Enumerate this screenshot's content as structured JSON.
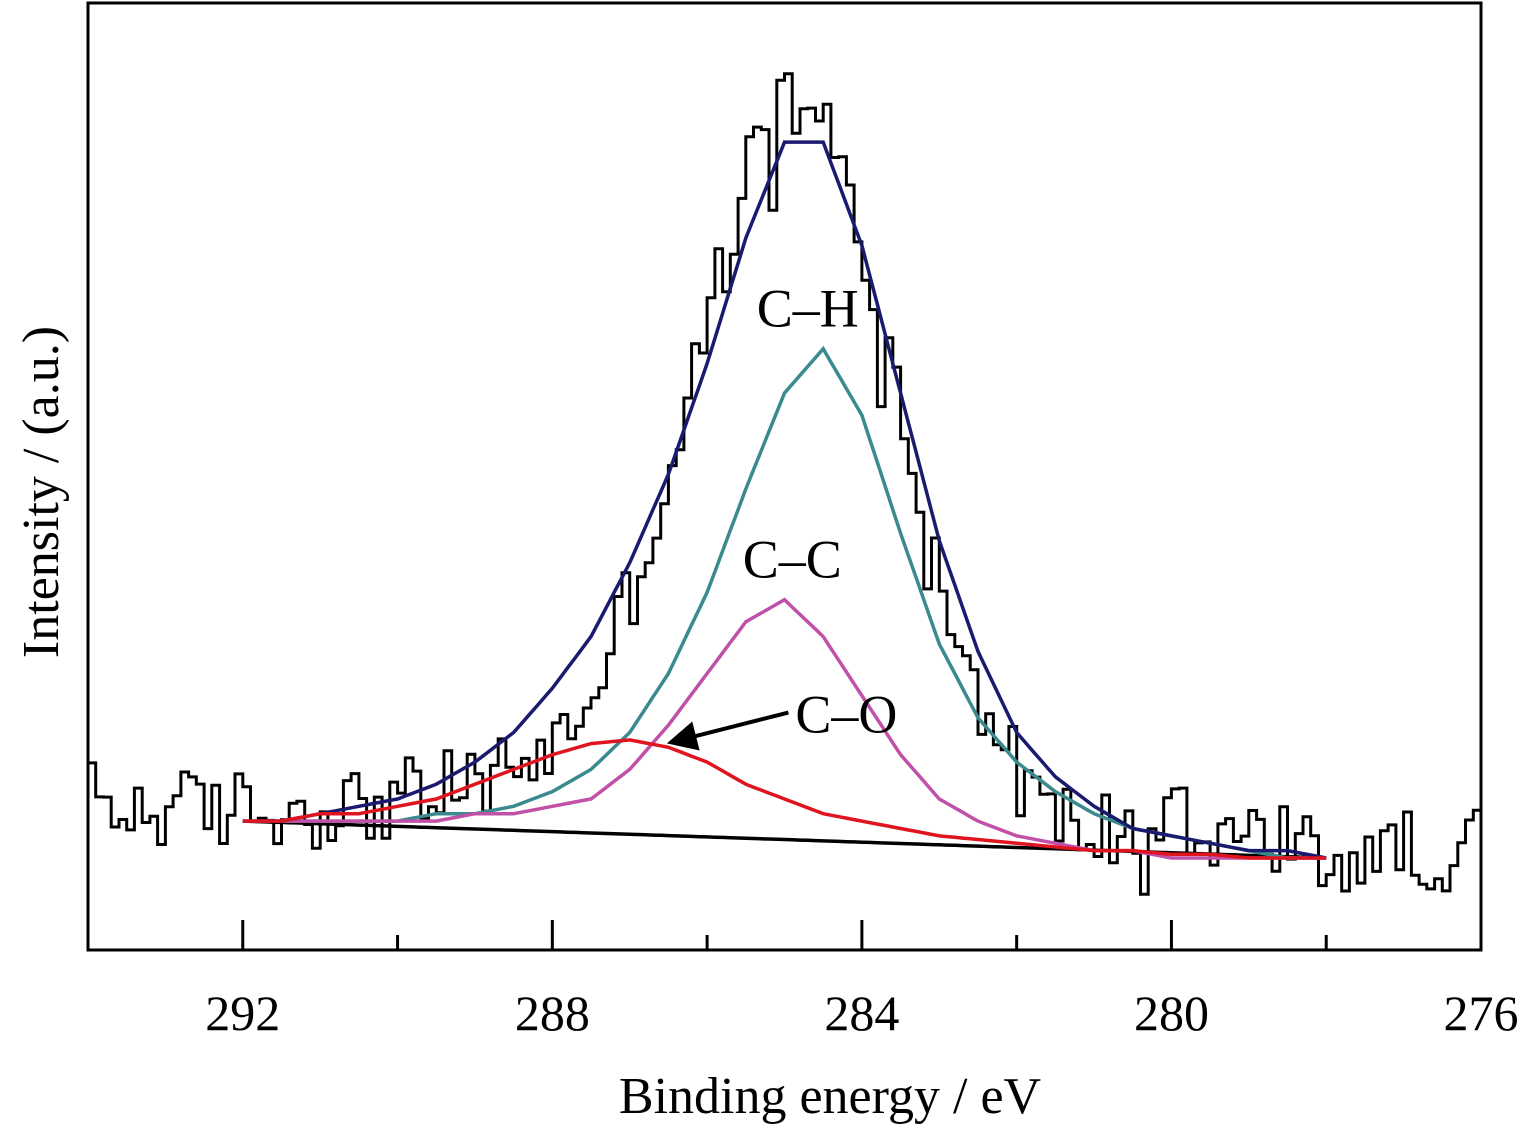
{
  "chart_data": {
    "type": "line",
    "xlabel": "Binding energy / eV",
    "ylabel": "Intensity / (a.u.)",
    "xlim": [
      294,
      276
    ],
    "x_reversed": true,
    "xticks_major": [
      292,
      288,
      284,
      280,
      276
    ],
    "xticks_minor": [
      290,
      286,
      282,
      278
    ],
    "y_ticks_shown": false,
    "grid": false,
    "legend": "none",
    "series": [
      {
        "name": "",
        "role": "raw-spectrum",
        "color": "#000000",
        "x": [
          294.0,
          293.5,
          293.0,
          292.5,
          292.0,
          291.5,
          291.0,
          290.5,
          290.0,
          289.5,
          289.0,
          288.5,
          288.0,
          287.5,
          287.0,
          286.5,
          286.0,
          285.5,
          285.0,
          284.5,
          284.0,
          283.5,
          283.0,
          282.5,
          282.0,
          281.5,
          281.0,
          280.5,
          280.0,
          279.5,
          279.0,
          278.5,
          278.0,
          277.5,
          277.0,
          276.5,
          276.0
        ],
        "values": [
          0.08,
          0.06,
          0.07,
          0.06,
          0.07,
          0.06,
          0.07,
          0.07,
          0.08,
          0.09,
          0.1,
          0.13,
          0.15,
          0.23,
          0.37,
          0.53,
          0.74,
          0.93,
          1.03,
          0.98,
          0.82,
          0.58,
          0.36,
          0.2,
          0.11,
          0.05,
          0.04,
          0.04,
          0.04,
          0.03,
          0.03,
          0.01,
          0.0,
          0.0,
          0.01,
          0.01,
          0.02
        ]
      },
      {
        "name": "",
        "role": "envelope-fit",
        "color": "#1a1a6e",
        "x": [
          292.0,
          291.5,
          291.0,
          290.5,
          290.0,
          289.5,
          289.0,
          288.5,
          288.0,
          287.5,
          287.0,
          286.5,
          286.0,
          285.5,
          285.0,
          284.5,
          284.0,
          283.5,
          283.0,
          282.5,
          282.0,
          281.5,
          281.0,
          280.5,
          280.0,
          279.5,
          279.0,
          278.5,
          278.0
        ],
        "values": [
          0.05,
          0.05,
          0.06,
          0.07,
          0.08,
          0.1,
          0.13,
          0.17,
          0.23,
          0.3,
          0.4,
          0.52,
          0.67,
          0.84,
          0.97,
          0.97,
          0.83,
          0.63,
          0.43,
          0.28,
          0.17,
          0.11,
          0.07,
          0.04,
          0.03,
          0.02,
          0.01,
          0.01,
          0.0
        ]
      },
      {
        "name": "C–H",
        "color": "#3a8a8e",
        "x": [
          292.0,
          291.5,
          291.0,
          290.5,
          290.0,
          289.5,
          289.0,
          288.5,
          288.0,
          287.5,
          287.0,
          286.5,
          286.0,
          285.5,
          285.0,
          284.5,
          284.0,
          283.5,
          283.0,
          282.5,
          282.0,
          281.5,
          281.0,
          280.5,
          280.0,
          279.5,
          279.0,
          278.5,
          278.0
        ],
        "values": [
          0.05,
          0.05,
          0.05,
          0.05,
          0.05,
          0.06,
          0.06,
          0.07,
          0.09,
          0.12,
          0.17,
          0.25,
          0.36,
          0.5,
          0.63,
          0.69,
          0.6,
          0.44,
          0.29,
          0.19,
          0.13,
          0.09,
          0.06,
          0.04,
          0.03,
          0.02,
          0.01,
          0.0,
          0.0
        ]
      },
      {
        "name": "C–C",
        "color": "#c050a8",
        "x": [
          292.0,
          291.5,
          291.0,
          290.5,
          290.0,
          289.5,
          289.0,
          288.5,
          288.0,
          287.5,
          287.0,
          286.5,
          286.0,
          285.5,
          285.0,
          284.5,
          284.0,
          283.5,
          283.0,
          282.5,
          282.0,
          281.5,
          281.0,
          280.5,
          280.0,
          279.5,
          279.0,
          278.5,
          278.0
        ],
        "values": [
          0.05,
          0.05,
          0.05,
          0.05,
          0.05,
          0.05,
          0.06,
          0.06,
          0.07,
          0.08,
          0.12,
          0.18,
          0.25,
          0.32,
          0.35,
          0.3,
          0.22,
          0.14,
          0.08,
          0.05,
          0.03,
          0.02,
          0.01,
          0.01,
          0.0,
          0.0,
          0.0,
          0.0,
          0.0
        ]
      },
      {
        "name": "C–O",
        "color": "#e0141e",
        "x": [
          292.0,
          291.5,
          291.0,
          290.5,
          290.0,
          289.5,
          289.0,
          288.5,
          288.0,
          287.5,
          287.0,
          286.5,
          286.0,
          285.5,
          285.0,
          284.5,
          284.0,
          283.5,
          283.0,
          282.5,
          282.0,
          281.5,
          281.0,
          280.5,
          280.0,
          279.5,
          279.0,
          278.5,
          278.0
        ],
        "values": [
          0.05,
          0.05,
          0.06,
          0.06,
          0.07,
          0.08,
          0.1,
          0.12,
          0.14,
          0.155,
          0.16,
          0.15,
          0.13,
          0.1,
          0.08,
          0.06,
          0.05,
          0.04,
          0.03,
          0.025,
          0.02,
          0.015,
          0.01,
          0.01,
          0.005,
          0.005,
          0.0,
          0.0,
          0.0
        ]
      },
      {
        "name": "",
        "role": "background",
        "color": "#000000",
        "x": [
          292.0,
          278.0
        ],
        "values": [
          0.05,
          0.0
        ]
      }
    ],
    "annotations": [
      {
        "text": "C–H",
        "x": 284.7,
        "y": 0.72
      },
      {
        "text": "C–C",
        "x": 284.9,
        "y": 0.38
      },
      {
        "text": "C–O",
        "x": 284.2,
        "y": 0.17,
        "arrow_to": [
          286.6,
          0.16
        ]
      }
    ]
  }
}
